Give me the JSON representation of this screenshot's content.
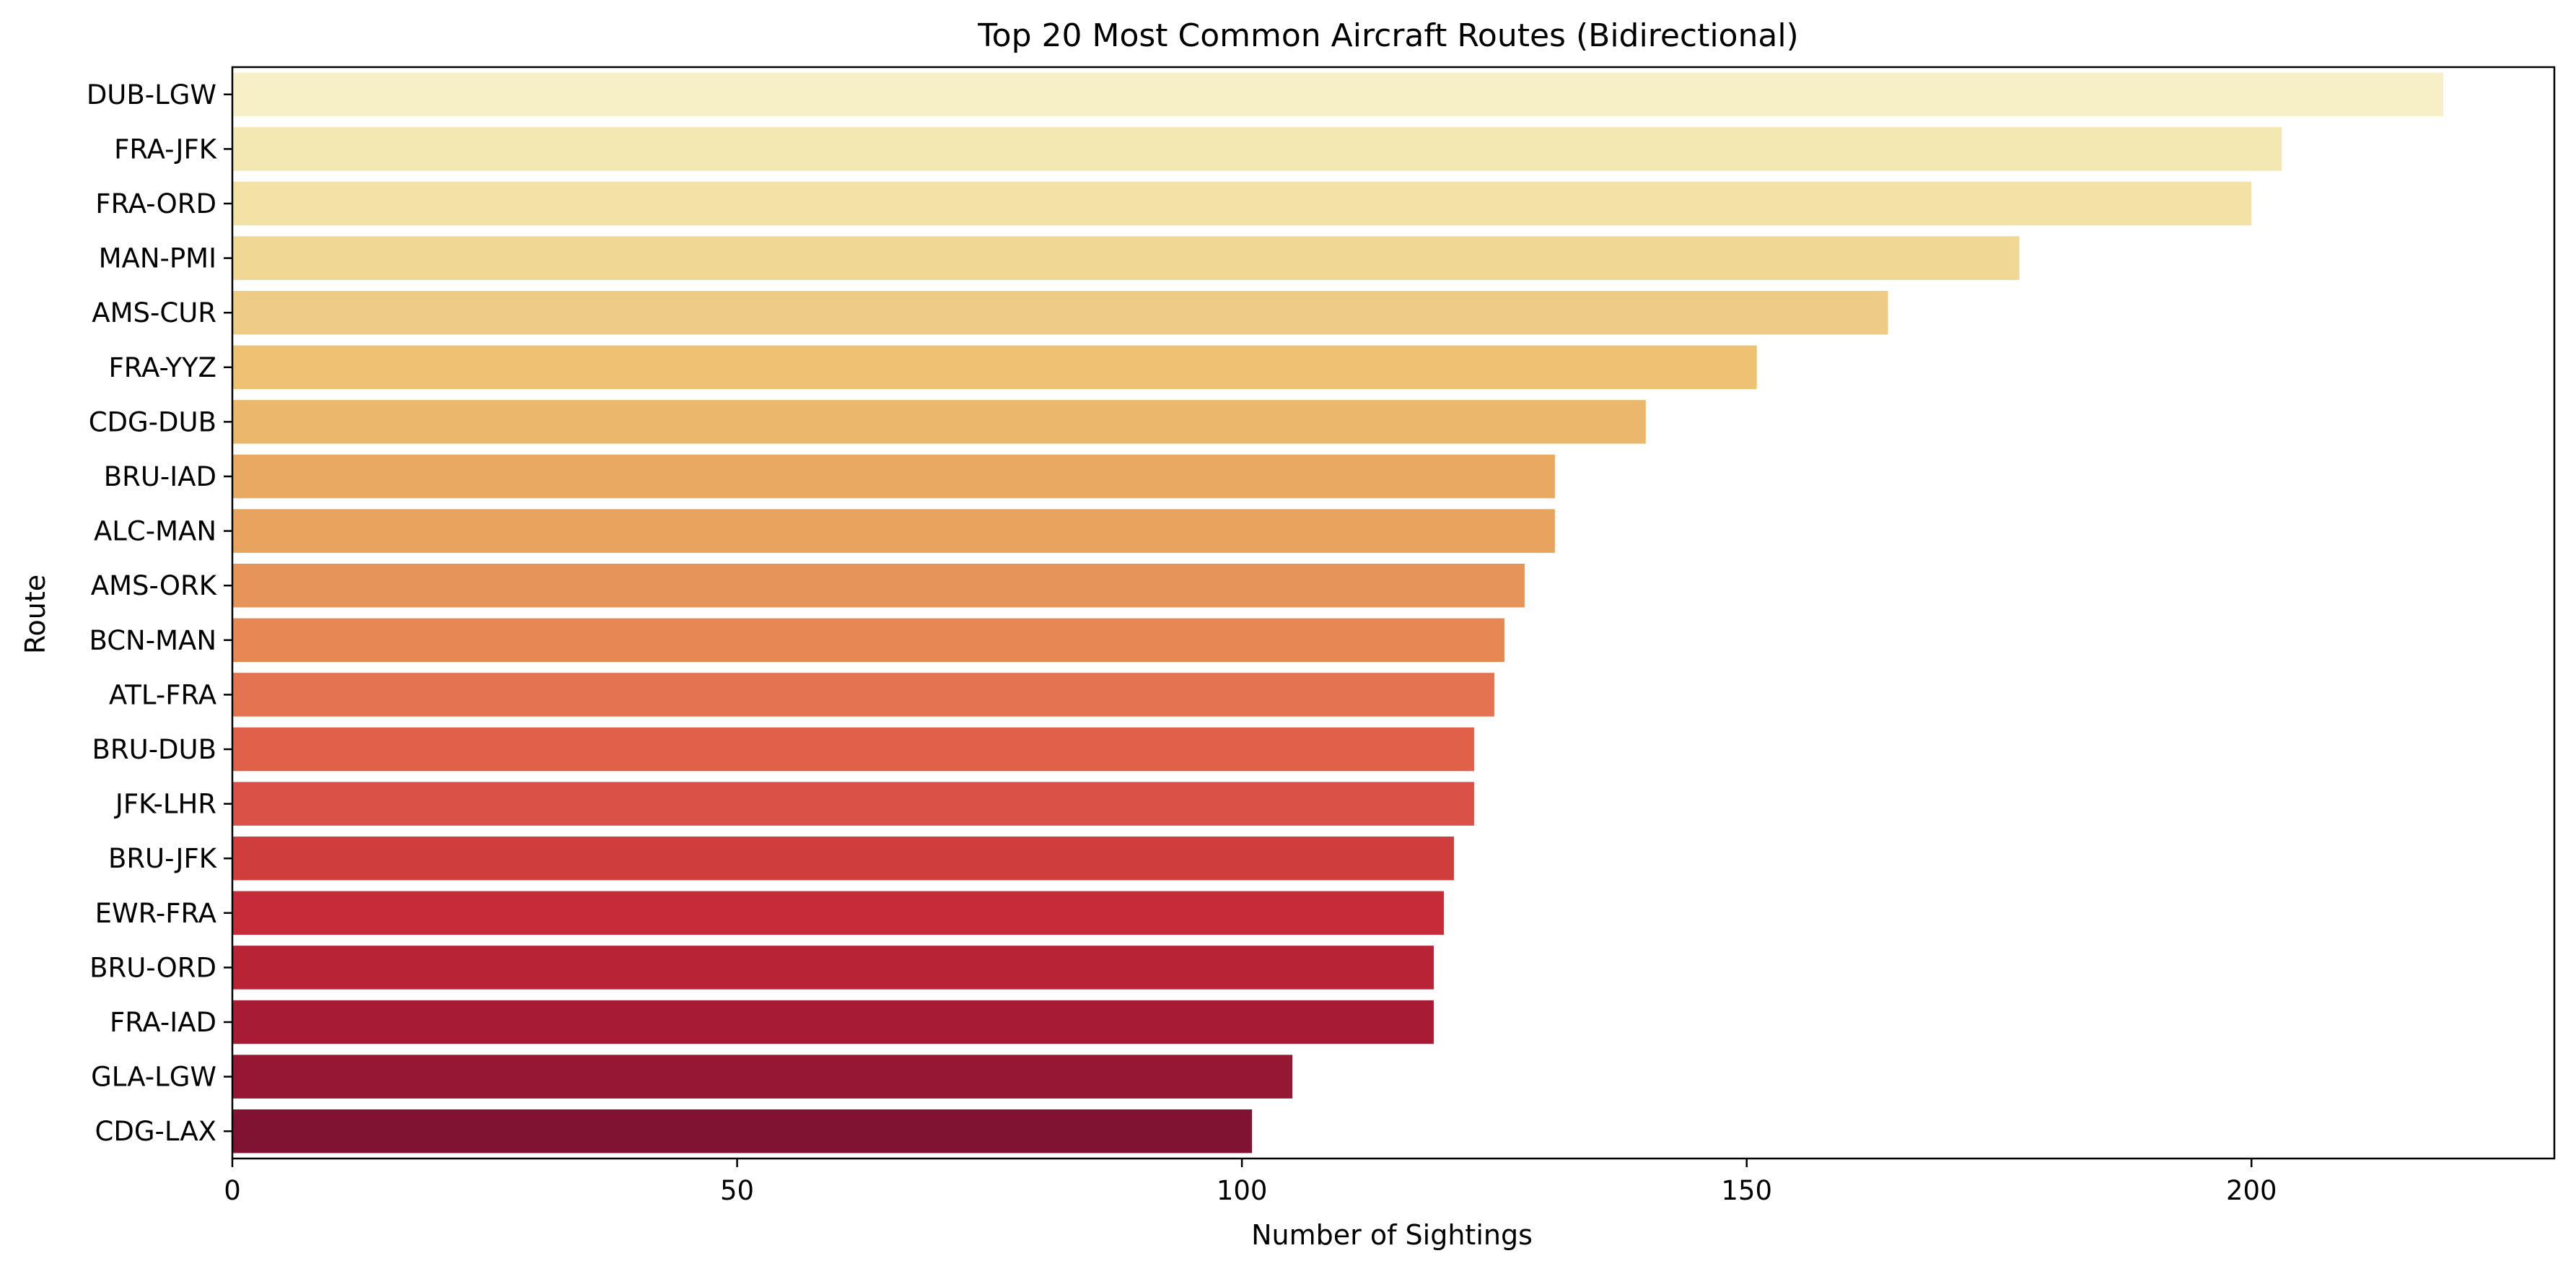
{
  "chart_data": {
    "type": "bar",
    "orientation": "horizontal",
    "title": "Top 20 Most Common Aircraft Routes (Bidirectional)",
    "xlabel": "Number of Sightings",
    "ylabel": "Route",
    "xlim": [
      0,
      230
    ],
    "xticks": [
      0,
      50,
      100,
      150,
      200
    ],
    "grid": false,
    "categories": [
      "DUB-LGW",
      "FRA-JFK",
      "FRA-ORD",
      "MAN-PMI",
      "AMS-CUR",
      "FRA-YYZ",
      "CDG-DUB",
      "BRU-IAD",
      "ALC-MAN",
      "AMS-ORK",
      "BCN-MAN",
      "ATL-FRA",
      "BRU-DUB",
      "JFK-LHR",
      "BRU-JFK",
      "EWR-FRA",
      "BRU-ORD",
      "FRA-IAD",
      "GLA-LGW",
      "CDG-LAX"
    ],
    "values": [
      219,
      203,
      200,
      177,
      164,
      151,
      140,
      131,
      131,
      128,
      126,
      125,
      123,
      123,
      121,
      120,
      119,
      119,
      105,
      101
    ],
    "colors": [
      "#f7efc5",
      "#f4e8b2",
      "#f2e2a5",
      "#f0d794",
      "#efcc86",
      "#eec173",
      "#ebb76c",
      "#e9a963",
      "#e8a45f",
      "#e6945a",
      "#e68754",
      "#e47451",
      "#e06049",
      "#da5147",
      "#cf3d3d",
      "#c62b39",
      "#b82336",
      "#a81b35",
      "#961734",
      "#801332"
    ]
  }
}
